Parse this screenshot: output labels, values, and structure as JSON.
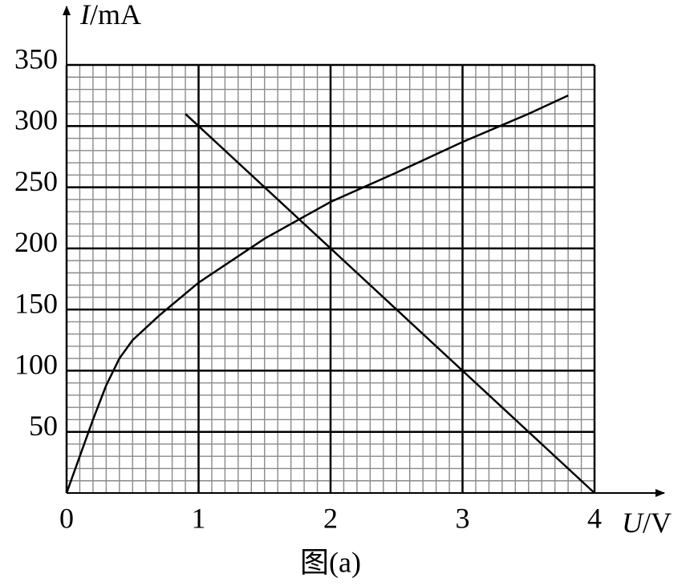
{
  "chart_data": {
    "type": "line",
    "ylabel": [
      "I",
      "/mA"
    ],
    "xlabel": [
      "U",
      "/V"
    ],
    "caption": "图(a)",
    "xlim": [
      0,
      4
    ],
    "xticks": [
      0,
      1,
      2,
      3,
      4
    ],
    "ylim": [
      0,
      350
    ],
    "yticks": [
      50,
      100,
      150,
      200,
      250,
      300,
      350
    ],
    "grid": true,
    "series": [
      {
        "color": "#000000",
        "x": [
          0.9,
          4
        ],
        "values": [
          310,
          0
        ]
      },
      {
        "color": "#000000",
        "x": [
          0,
          0.1,
          0.2,
          0.3,
          0.4,
          0.5,
          0.7,
          1,
          1.5,
          2,
          2.5,
          3,
          3.5,
          3.8
        ],
        "values": [
          0,
          30,
          60,
          88,
          110,
          125,
          145,
          172,
          208,
          238,
          262,
          287,
          310,
          325
        ]
      }
    ]
  }
}
